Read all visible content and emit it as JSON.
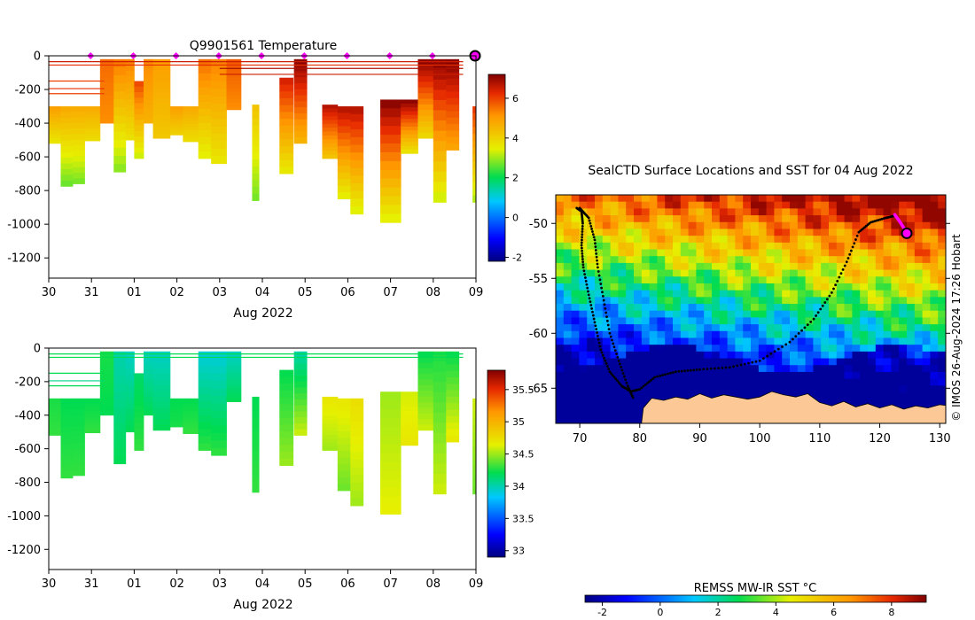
{
  "chart_data": [
    {
      "id": "temp",
      "type": "heatmap",
      "title": "Q9901561  Temperature",
      "xlabel": "Aug 2022",
      "ylabel": "",
      "x_tick_labels": [
        "30",
        "31",
        "01",
        "02",
        "03",
        "04",
        "05",
        "06",
        "07",
        "08",
        "09"
      ],
      "xlim": [
        0,
        10
      ],
      "y_ticks": [
        0,
        -200,
        -400,
        -600,
        -800,
        -1000,
        -1200
      ],
      "ylim": [
        -1320,
        0
      ],
      "colorbar": {
        "ticks": [
          6,
          4,
          2,
          0,
          -2
        ],
        "range": [
          -2.2,
          7.2
        ]
      },
      "profile_marker_days": [
        1,
        2,
        3,
        4,
        5,
        6,
        7,
        8,
        9
      ],
      "current_position_day": 10,
      "profiles": [
        {
          "t": 0.0,
          "w": 0.28,
          "deep": -520,
          "top": -300,
          "v0": 5.0,
          "v1": 3.6
        },
        {
          "t": 0.28,
          "w": 0.28,
          "deep": -775,
          "top": -300,
          "v0": 4.8,
          "v1": 2.6
        },
        {
          "t": 0.56,
          "w": 0.28,
          "deep": -760,
          "top": -300,
          "v0": 4.8,
          "v1": 2.7
        },
        {
          "t": 0.84,
          "w": 0.36,
          "deep": -505,
          "top": -300,
          "v0": 4.8,
          "v1": 3.8
        },
        {
          "t": 1.2,
          "w": 0.32,
          "deep": -400,
          "top": -20,
          "v0": 5.6,
          "v1": 5.2
        },
        {
          "t": 1.52,
          "w": 0.28,
          "deep": -690,
          "top": -20,
          "v0": 5.5,
          "v1": 2.8
        },
        {
          "t": 1.8,
          "w": 0.2,
          "deep": -500,
          "top": -20,
          "v0": 5.4,
          "v1": 3.7
        },
        {
          "t": 2.0,
          "w": 0.22,
          "deep": -610,
          "top": -150,
          "v0": 6.0,
          "v1": 3.2
        },
        {
          "t": 2.22,
          "w": 0.22,
          "deep": -400,
          "top": -20,
          "v0": 5.3,
          "v1": 4.6
        },
        {
          "t": 2.44,
          "w": 0.4,
          "deep": -490,
          "top": -20,
          "v0": 5.0,
          "v1": 4.2
        },
        {
          "t": 2.84,
          "w": 0.3,
          "deep": -470,
          "top": -300,
          "v0": 5.0,
          "v1": 4.0
        },
        {
          "t": 3.14,
          "w": 0.36,
          "deep": -510,
          "top": -300,
          "v0": 4.8,
          "v1": 3.8
        },
        {
          "t": 3.5,
          "w": 0.3,
          "deep": -610,
          "top": -20,
          "v0": 5.6,
          "v1": 3.4
        },
        {
          "t": 3.8,
          "w": 0.36,
          "deep": -640,
          "top": -20,
          "v0": 5.4,
          "v1": 3.6
        },
        {
          "t": 4.16,
          "w": 0.34,
          "deep": -320,
          "top": -20,
          "v0": 5.8,
          "v1": 5.2
        },
        {
          "t": 4.76,
          "w": 0.16,
          "deep": -860,
          "top": -290,
          "v0": 4.3,
          "v1": 2.7
        },
        {
          "t": 5.4,
          "w": 0.32,
          "deep": -700,
          "top": -130,
          "v0": 6.5,
          "v1": 3.5
        },
        {
          "t": 5.74,
          "w": 0.3,
          "deep": -520,
          "top": -20,
          "v0": 7.2,
          "v1": 4.5
        },
        {
          "t": 6.4,
          "w": 0.36,
          "deep": -610,
          "top": -290,
          "v0": 6.8,
          "v1": 4.2
        },
        {
          "t": 6.76,
          "w": 0.3,
          "deep": -850,
          "top": -300,
          "v0": 6.8,
          "v1": 3.4
        },
        {
          "t": 7.06,
          "w": 0.3,
          "deep": -940,
          "top": -300,
          "v0": 6.8,
          "v1": 3.3
        },
        {
          "t": 7.76,
          "w": 0.48,
          "deep": -990,
          "top": -260,
          "v0": 7.2,
          "v1": 3.3
        },
        {
          "t": 8.24,
          "w": 0.4,
          "deep": -580,
          "top": -260,
          "v0": 7.2,
          "v1": 3.6
        },
        {
          "t": 8.64,
          "w": 0.36,
          "deep": -490,
          "top": -20,
          "v0": 7.2,
          "v1": 3.8
        },
        {
          "t": 9.0,
          "w": 0.3,
          "deep": -870,
          "top": -20,
          "v0": 7.2,
          "v1": 3.2
        },
        {
          "t": 9.3,
          "w": 0.3,
          "deep": -560,
          "top": -20,
          "v0": 7.2,
          "v1": 4.8
        },
        {
          "t": 9.92,
          "w": 0.08,
          "deep": -870,
          "top": -300,
          "v0": 6.2,
          "v1": 3.0
        }
      ],
      "surface_lines": [
        {
          "t0": 0.0,
          "t1": 9.7,
          "d": -35,
          "v": 6.5
        },
        {
          "t0": 0.0,
          "t1": 9.7,
          "d": -55,
          "v": 6.2
        },
        {
          "t0": 0.0,
          "t1": 1.3,
          "d": -150,
          "v": 6.0
        },
        {
          "t0": 0.0,
          "t1": 1.3,
          "d": -195,
          "v": 6.2
        },
        {
          "t0": 0.0,
          "t1": 1.3,
          "d": -225,
          "v": 6.0
        },
        {
          "t0": 4.0,
          "t1": 9.7,
          "d": -110,
          "v": 6.5
        },
        {
          "t0": 4.0,
          "t1": 9.7,
          "d": -75,
          "v": 6.8
        }
      ]
    },
    {
      "id": "sal",
      "type": "heatmap",
      "title": "",
      "xlabel": "Aug 2022",
      "ylabel": "",
      "x_tick_labels": [
        "30",
        "31",
        "01",
        "02",
        "03",
        "04",
        "05",
        "06",
        "07",
        "08",
        "09"
      ],
      "xlim": [
        0,
        10
      ],
      "y_ticks": [
        0,
        -200,
        -400,
        -600,
        -800,
        -1000,
        -1200
      ],
      "ylim": [
        -1320,
        0
      ],
      "colorbar": {
        "ticks": [
          35.5,
          35,
          34.5,
          34,
          33.5,
          33
        ],
        "range": [
          32.9,
          35.8
        ]
      },
      "profiles": [
        {
          "t": 0.0,
          "w": 0.28,
          "deep": -520,
          "top": -300,
          "v0": 34.25,
          "v1": 34.3
        },
        {
          "t": 0.28,
          "w": 0.28,
          "deep": -775,
          "top": -300,
          "v0": 34.2,
          "v1": 34.3
        },
        {
          "t": 0.56,
          "w": 0.28,
          "deep": -760,
          "top": -300,
          "v0": 34.2,
          "v1": 34.3
        },
        {
          "t": 0.84,
          "w": 0.36,
          "deep": -505,
          "top": -300,
          "v0": 34.2,
          "v1": 34.3
        },
        {
          "t": 1.2,
          "w": 0.32,
          "deep": -400,
          "top": -20,
          "v0": 34.25,
          "v1": 34.2
        },
        {
          "t": 1.52,
          "w": 0.28,
          "deep": -690,
          "top": -20,
          "v0": 34.0,
          "v1": 34.2
        },
        {
          "t": 1.8,
          "w": 0.2,
          "deep": -500,
          "top": -20,
          "v0": 33.95,
          "v1": 34.2
        },
        {
          "t": 2.0,
          "w": 0.22,
          "deep": -610,
          "top": -150,
          "v0": 34.15,
          "v1": 34.3
        },
        {
          "t": 2.22,
          "w": 0.22,
          "deep": -400,
          "top": -20,
          "v0": 33.95,
          "v1": 34.2
        },
        {
          "t": 2.44,
          "w": 0.4,
          "deep": -490,
          "top": -20,
          "v0": 33.95,
          "v1": 34.2
        },
        {
          "t": 2.84,
          "w": 0.3,
          "deep": -470,
          "top": -300,
          "v0": 34.2,
          "v1": 34.25
        },
        {
          "t": 3.14,
          "w": 0.36,
          "deep": -510,
          "top": -300,
          "v0": 34.2,
          "v1": 34.3
        },
        {
          "t": 3.5,
          "w": 0.3,
          "deep": -610,
          "top": -20,
          "v0": 33.9,
          "v1": 34.3
        },
        {
          "t": 3.8,
          "w": 0.36,
          "deep": -640,
          "top": -20,
          "v0": 33.9,
          "v1": 34.3
        },
        {
          "t": 4.16,
          "w": 0.34,
          "deep": -320,
          "top": -20,
          "v0": 33.95,
          "v1": 34.2
        },
        {
          "t": 4.76,
          "w": 0.16,
          "deep": -860,
          "top": -290,
          "v0": 34.2,
          "v1": 34.3
        },
        {
          "t": 5.4,
          "w": 0.32,
          "deep": -700,
          "top": -130,
          "v0": 34.2,
          "v1": 34.5
        },
        {
          "t": 5.74,
          "w": 0.3,
          "deep": -520,
          "top": -20,
          "v0": 34.0,
          "v1": 34.6
        },
        {
          "t": 6.4,
          "w": 0.36,
          "deep": -610,
          "top": -290,
          "v0": 34.7,
          "v1": 34.5
        },
        {
          "t": 6.76,
          "w": 0.3,
          "deep": -850,
          "top": -300,
          "v0": 34.7,
          "v1": 34.4
        },
        {
          "t": 7.06,
          "w": 0.3,
          "deep": -940,
          "top": -300,
          "v0": 34.75,
          "v1": 34.5
        },
        {
          "t": 7.76,
          "w": 0.48,
          "deep": -990,
          "top": -260,
          "v0": 34.5,
          "v1": 34.65
        },
        {
          "t": 8.24,
          "w": 0.4,
          "deep": -580,
          "top": -260,
          "v0": 34.6,
          "v1": 34.7
        },
        {
          "t": 8.64,
          "w": 0.36,
          "deep": -490,
          "top": -20,
          "v0": 34.2,
          "v1": 34.6
        },
        {
          "t": 9.0,
          "w": 0.3,
          "deep": -870,
          "top": -20,
          "v0": 34.25,
          "v1": 34.6
        },
        {
          "t": 9.3,
          "w": 0.3,
          "deep": -560,
          "top": -20,
          "v0": 34.2,
          "v1": 34.7
        },
        {
          "t": 9.92,
          "w": 0.08,
          "deep": -870,
          "top": -300,
          "v0": 34.6,
          "v1": 34.4
        }
      ],
      "surface_lines": [
        {
          "t0": 0.0,
          "t1": 9.7,
          "d": -35,
          "v": 34.2
        },
        {
          "t0": 0.0,
          "t1": 9.7,
          "d": -55,
          "v": 34.2
        },
        {
          "t0": 0.0,
          "t1": 1.3,
          "d": -150,
          "v": 34.2
        },
        {
          "t0": 0.0,
          "t1": 1.3,
          "d": -195,
          "v": 34.1
        },
        {
          "t0": 0.0,
          "t1": 1.3,
          "d": -225,
          "v": 34.2
        }
      ]
    },
    {
      "id": "map",
      "type": "heatmap",
      "title": "SealCTD Surface Locations and SST for 04 Aug 2022",
      "xlabel": "",
      "ylabel": "",
      "x_ticks": [
        70,
        80,
        90,
        100,
        110,
        120,
        130
      ],
      "y_ticks": [
        -50,
        -55,
        -60,
        -65
      ],
      "xlim": [
        66,
        131
      ],
      "ylim": [
        -68.2,
        -47.4
      ],
      "colorbar": {
        "label": "REMSS MW-IR SST °C",
        "ticks": [
          -2,
          0,
          2,
          4,
          6,
          8
        ],
        "range": [
          -2.6,
          9.2
        ]
      },
      "track": [
        [
          69.5,
          -48.6
        ],
        [
          70.3,
          -48.9
        ],
        [
          70.5,
          -50.0
        ],
        [
          70.3,
          -52.0
        ],
        [
          70.6,
          -54.0
        ],
        [
          71.5,
          -56.5
        ],
        [
          72.5,
          -59.0
        ],
        [
          73.5,
          -61.5
        ],
        [
          75.0,
          -63.5
        ],
        [
          77.0,
          -64.8
        ],
        [
          78.5,
          -65.3
        ],
        [
          80.0,
          -65.1
        ],
        [
          82.5,
          -64.0
        ],
        [
          86.0,
          -63.5
        ],
        [
          90.0,
          -63.3
        ],
        [
          95.0,
          -63.1
        ],
        [
          100.0,
          -62.5
        ],
        [
          105.0,
          -60.8
        ],
        [
          109.0,
          -58.7
        ],
        [
          112.0,
          -56.3
        ],
        [
          114.5,
          -53.5
        ],
        [
          116.5,
          -50.8
        ],
        [
          118.5,
          -49.9
        ],
        [
          121.0,
          -49.5
        ],
        [
          122.5,
          -49.3
        ]
      ],
      "track2": [
        [
          70.0,
          -48.6
        ],
        [
          71.5,
          -49.5
        ],
        [
          72.5,
          -51.5
        ],
        [
          73.0,
          -54.0
        ],
        [
          74.0,
          -57.0
        ],
        [
          75.0,
          -60.0
        ],
        [
          76.5,
          -62.5
        ],
        [
          78.0,
          -64.8
        ],
        [
          79.0,
          -66.0
        ]
      ],
      "highlight_track": [
        [
          122.5,
          -49.2
        ],
        [
          123.3,
          -49.8
        ],
        [
          124.0,
          -50.4
        ],
        [
          124.5,
          -50.9
        ]
      ],
      "current_position": [
        124.5,
        -50.9
      ],
      "land_color": "#fcc896",
      "timestamp": "© IMOS 26-Aug-2024 17:26 Hobart"
    }
  ]
}
